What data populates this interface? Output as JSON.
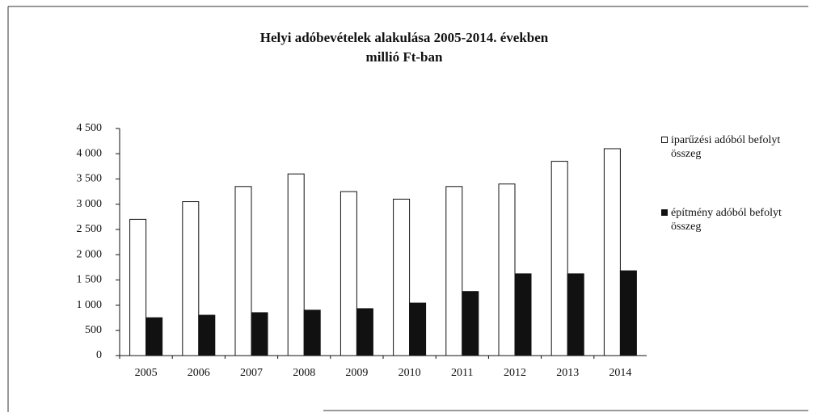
{
  "chart_data": {
    "type": "bar",
    "title": "Helyi adóbevételek alakulása 2005-2014. években",
    "subtitle": "millió Ft-ban",
    "categories": [
      "2005",
      "2006",
      "2007",
      "2008",
      "2009",
      "2010",
      "2011",
      "2012",
      "2013",
      "2014"
    ],
    "series": [
      {
        "name": "iparűzési adóból befolyt összeg",
        "color": "#ffffff",
        "values": [
          2700,
          3050,
          3350,
          3600,
          3250,
          3100,
          3350,
          3400,
          3850,
          4100
        ]
      },
      {
        "name": "építmény adóból befolyt összeg",
        "color": "#111111",
        "values": [
          750,
          800,
          850,
          900,
          930,
          1040,
          1270,
          1620,
          1620,
          1680
        ]
      }
    ],
    "ylim": [
      0,
      4500
    ],
    "yticks": [
      0,
      500,
      {
        "value": 1000,
        "label": "1 000"
      },
      {
        "value": 1500,
        "label": "1 500"
      },
      {
        "value": 2000,
        "label": "2 000"
      },
      {
        "value": 2500,
        "label": "2 500"
      },
      {
        "value": 3000,
        "label": "3 000"
      },
      {
        "value": 3500,
        "label": "3 500"
      },
      {
        "value": 4000,
        "label": "4 000"
      },
      {
        "value": 4500,
        "label": "4 500"
      }
    ],
    "legend": "right"
  }
}
